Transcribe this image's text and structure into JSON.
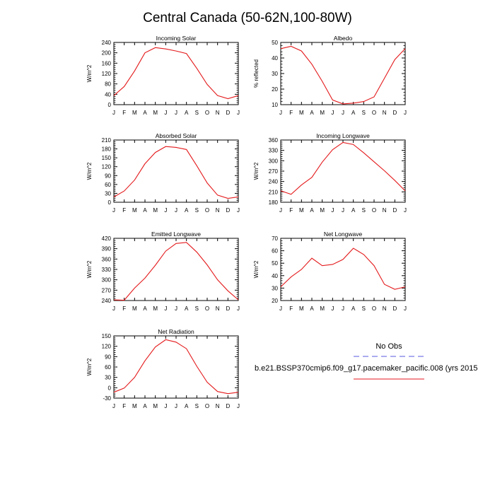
{
  "title": "Central Canada (50-62N,100-80W)",
  "months": [
    "J",
    "F",
    "M",
    "A",
    "M",
    "J",
    "J",
    "A",
    "S",
    "O",
    "N",
    "D",
    "J"
  ],
  "legend": {
    "obs_label": "No Obs",
    "model_label": "b.e21.BSSP370cmip6.f09_g17.pacemaker_pacific.008 (yrs 2015",
    "obs_color": "#7b7be6",
    "model_color": "#e41a1c"
  },
  "chart_data": [
    {
      "type": "line",
      "title": "Incoming Solar",
      "ylabel": "W/m^2",
      "ylim": [
        0,
        240
      ],
      "yticks": [
        0,
        40,
        80,
        120,
        160,
        200,
        240
      ],
      "y": [
        35,
        70,
        130,
        200,
        220,
        215,
        207,
        197,
        140,
        78,
        35,
        23,
        35
      ]
    },
    {
      "type": "line",
      "title": "Albedo",
      "ylabel": "% reflected",
      "ylim": [
        10,
        50
      ],
      "yticks": [
        10,
        20,
        30,
        40,
        50
      ],
      "y": [
        46,
        47.5,
        44.5,
        36,
        25,
        13,
        10.5,
        11,
        12,
        15,
        27,
        39,
        46
      ]
    },
    {
      "type": "line",
      "title": "Absorbed Solar",
      "ylabel": "W/m^2",
      "ylim": [
        0,
        210
      ],
      "yticks": [
        0,
        30,
        60,
        90,
        120,
        150,
        180,
        210
      ],
      "y": [
        18,
        38,
        75,
        130,
        168,
        188,
        185,
        178,
        123,
        65,
        24,
        13,
        18
      ]
    },
    {
      "type": "line",
      "title": "Incoming Longwave",
      "ylabel": "W/m^2",
      "ylim": [
        180,
        360
      ],
      "yticks": [
        180,
        210,
        240,
        270,
        300,
        330,
        360
      ],
      "y": [
        213,
        203,
        230,
        252,
        296,
        332,
        353,
        347,
        323,
        297,
        271,
        243,
        213
      ]
    },
    {
      "type": "line",
      "title": "Emitted Longwave",
      "ylabel": "W/m^2",
      "ylim": [
        240,
        420
      ],
      "yticks": [
        240,
        270,
        300,
        330,
        360,
        390,
        420
      ],
      "y": [
        242,
        241,
        276,
        305,
        342,
        383,
        405,
        408,
        380,
        343,
        300,
        268,
        242
      ]
    },
    {
      "type": "line",
      "title": "Net Longwave",
      "ylabel": "W/m^2",
      "ylim": [
        20,
        70
      ],
      "yticks": [
        20,
        30,
        40,
        50,
        60,
        70
      ],
      "y": [
        31,
        39,
        45,
        54,
        48,
        49,
        53,
        62,
        57,
        48,
        33,
        29,
        31
      ]
    },
    {
      "type": "line",
      "title": "Net Radiation",
      "ylabel": "W/m^2",
      "ylim": [
        -30,
        150
      ],
      "yticks": [
        -30,
        0,
        30,
        60,
        90,
        120,
        150
      ],
      "y": [
        -13,
        -1,
        30,
        78,
        118,
        139,
        132,
        113,
        62,
        16,
        -11,
        -17,
        -13
      ]
    }
  ]
}
